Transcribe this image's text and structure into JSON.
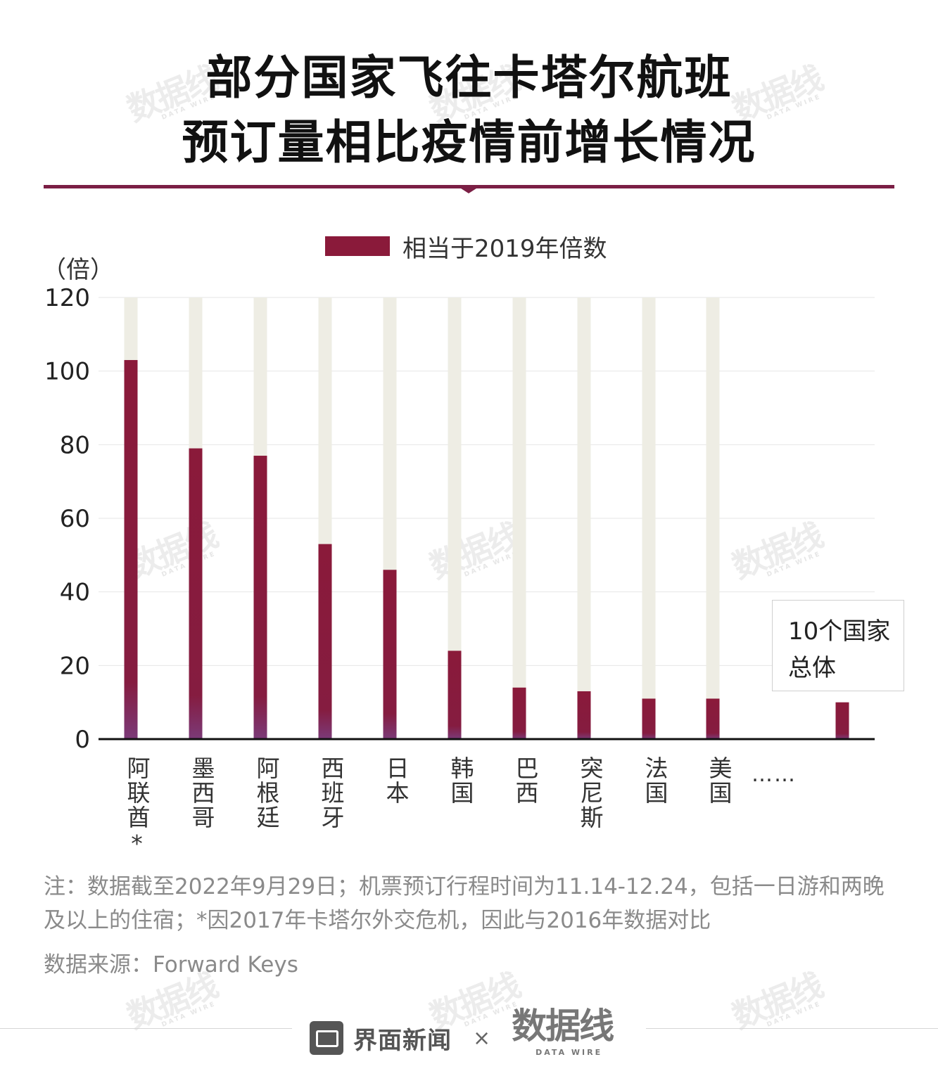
{
  "title": {
    "line1": "部分国家飞往卡塔尔航班",
    "line2": "预订量相比疫情前增长情况"
  },
  "legend": {
    "label": "相当于2019年倍数",
    "color": "#8a1a3a"
  },
  "unit_label": "（倍）",
  "callout": {
    "line1": "10个国家",
    "line2": "总体"
  },
  "ellipsis": "……",
  "note": "注：数据截至2022年9月29日；机票预订行程时间为11.14-12.24，包括一日游和两晚及以上的住宿；*因2017年卡塔尔外交危机，因此与2016年数据对比",
  "source": "数据来源：Forward Keys",
  "footer": {
    "brand": "界面新闻",
    "times": "×",
    "partner": "数据线",
    "partner_en": "DATA WIRE"
  },
  "watermark": {
    "text": "数据线",
    "sub": "DATA WIRE"
  },
  "colors": {
    "bar": "#8a1a3a",
    "bar_bottom": "#7b3a78",
    "track": "#eeede4",
    "rule": "#7b1f45"
  },
  "chart_data": {
    "type": "bar",
    "title": "部分国家飞往卡塔尔航班预订量相比疫情前增长情况",
    "ylabel": "（倍）",
    "ylim": [
      0,
      120
    ],
    "yticks": [
      0,
      20,
      40,
      60,
      80,
      100,
      120
    ],
    "categories": [
      "阿联酋*",
      "墨西哥",
      "阿根廷",
      "西班牙",
      "日本",
      "韩国",
      "巴西",
      "突尼斯",
      "法国",
      "美国",
      "10个国家总体"
    ],
    "series": [
      {
        "name": "相当于2019年倍数",
        "values": [
          103,
          79,
          77,
          53,
          46,
          24,
          14,
          13,
          11,
          11,
          10
        ]
      }
    ],
    "background_track_max": 120,
    "grid": true,
    "legend_position": "top"
  }
}
